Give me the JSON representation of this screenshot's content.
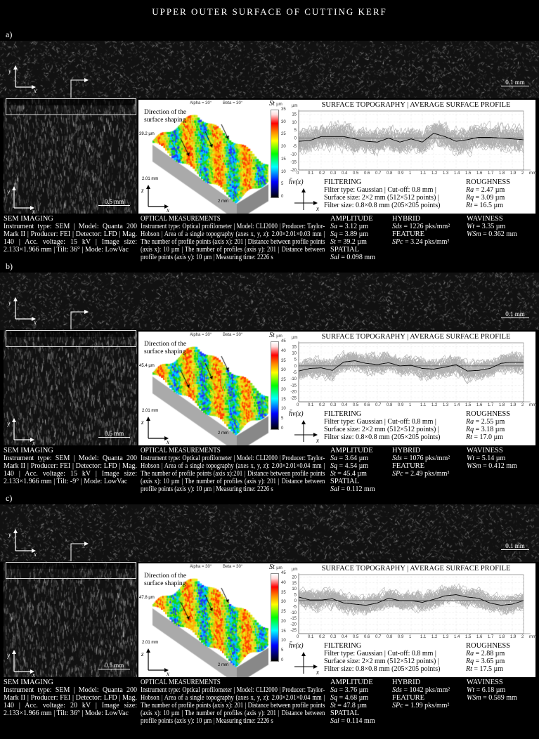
{
  "title": "UPPER OUTER SURFACE OF CUTTING KERF",
  "common": {
    "strip_scale": "0.1 mm",
    "sem_scale": "0.5 mm",
    "alpha": "Alpha = 30°",
    "beta": "Beta = 30°",
    "direction": "Direction of the surface shaping",
    "width_label": "2.01 mm",
    "length_label": "2 mm",
    "colorbar_symbol": "St",
    "colorbar_unit": "µm",
    "chart_title": "SURFACE TOPOGRAPHY | AVERAGE SURFACE PROFILE",
    "chart_yunit": "µm",
    "chart_xunit": "mm",
    "profile_symbol": "h̄v(x)",
    "filtering_header": "FILTERING",
    "filter_type": "Filter type: Gaussian | Cut-off: 0.8 mm |",
    "surface_size": "Surface size: 2×2 mm (512×512 points) |",
    "filter_size": "Filter size: 0.8×0.8 mm (205×205 points)",
    "roughness_header": "ROUGHNESS",
    "sem_header": "SEM IMAGING",
    "optical_header": "OPTICAL MEASUREMENTS",
    "amplitude_header": "AMPLITUDE",
    "spatial_header": "SPATIAL",
    "hybrid_header": "HYBRID",
    "feature_header": "FEATURE",
    "waviness_header": "WAVINESS",
    "axis_x": "x",
    "axis_y": "y",
    "axis_z": "z"
  },
  "panels": [
    {
      "label": "a)",
      "height_label": "39.2 µm",
      "colorbar_ticks": [
        "0",
        "5",
        "10",
        "15",
        "20",
        "25",
        "30",
        "35"
      ],
      "sem_text": "Instrument type: SEM | Model: Quanta 200 Mark II | Producer: FEI | Detector: LFD | Mag. 140 | Acc. voltage: 15 kV | Image size: 2.133×1.966 mm | Tilt: 36° | Mode: LowVac",
      "optical_text": "Instrument type: Optical profilometer | Model: CLI2000 | Producer: Taylor-Hobson | Area of a single topography (axes x, y, z): 2.00×2.01×0.03 mm | The number of profile points (axis x): 201 | Distance between profile points (axis x): 10 µm | The number of profiles (axis y): 201 | Distance between profile points (axis y): 10 µm | Measuring time: 2226 s",
      "roughness": [
        {
          "sym": "Ra",
          "val": " = 2.47 µm"
        },
        {
          "sym": "Rq",
          "val": " = 3.09 µm"
        },
        {
          "sym": "Rt",
          "val": " = 16.5 µm"
        }
      ],
      "amplitude": [
        {
          "sym": "Sa",
          "val": " = 3.12 µm"
        },
        {
          "sym": "Sq",
          "val": " = 3.89 µm"
        },
        {
          "sym": "St",
          "val": " = 39.2 µm"
        }
      ],
      "spatial": {
        "sym": "Sal",
        "val": " = 0.098 mm"
      },
      "hybrid": {
        "sym": "Sds",
        "val": " = 1226 pks/mm²"
      },
      "feature": {
        "sym": "SPc",
        "val": " = 3.24 pks/mm²"
      },
      "waviness": [
        {
          "sym": "Wt",
          "val": " = 3.35 µm"
        },
        {
          "sym": "WSm",
          "val": " = 0.362 mm"
        }
      ]
    },
    {
      "label": "b)",
      "height_label": "45.4 µm",
      "colorbar_ticks": [
        "0",
        "5",
        "10",
        "15",
        "20",
        "25",
        "30",
        "35",
        "40",
        "45"
      ],
      "sem_text": "Instrument type: SEM | Model: Quanta 200 Mark II | Producer: FEI | Detector: LFD | Mag. 140 | Acc. voltage: 15 kV | Image size: 2.133×1.966 mm | Tilt: -9° | Mode: LowVac",
      "optical_text": "Instrument type: Optical profilometer | Model: CLI2000 | Producer: Taylor-Hobson | Area of a single topography (axes x, y, z): 2.00×2.01×0.04 mm | The number of profile points (axis x):201 | Distance between profile points (axis x): 10 µm | The number of profiles (axis y): 201 | Distance between profile points (axis y): 10 µm | Measuring time: 2226 s",
      "roughness": [
        {
          "sym": "Ra",
          "val": " = 2.55 µm"
        },
        {
          "sym": "Rq",
          "val": " = 3.18 µm"
        },
        {
          "sym": "Rt",
          "val": " = 17.0 µm"
        }
      ],
      "amplitude": [
        {
          "sym": "Sa",
          "val": " = 3.64 µm"
        },
        {
          "sym": "Sq",
          "val": " = 4.54 µm"
        },
        {
          "sym": "St",
          "val": " = 45.4 µm"
        }
      ],
      "spatial": {
        "sym": "Sal",
        "val": " = 0.112 mm"
      },
      "hybrid": {
        "sym": "Sds",
        "val": " = 1076 pks/mm²"
      },
      "feature": {
        "sym": "SPc",
        "val": " = 2.49 pks/mm²"
      },
      "waviness": [
        {
          "sym": "Wt",
          "val": " = 5.14 µm"
        },
        {
          "sym": "WSm",
          "val": " = 0.412 mm"
        }
      ]
    },
    {
      "label": "c)",
      "height_label": "47.8 µm",
      "colorbar_ticks": [
        "0",
        "5",
        "10",
        "15",
        "20",
        "25",
        "30",
        "35",
        "40",
        "45"
      ],
      "sem_text": "Instrument type: SEM | Model: Quanta 200 Mark II | Producer: FEI | Detector: LFD | Mag. 140 | Acc. voltage: 20 kV | Image size: 2.133×1.966 mm | Tilt: 36° | Mode: LowVac",
      "optical_text": "Instrument type: Optical profilometer | Model: CLI2000 | Producer: Taylor-Hobson | Area of a single topography (axes x, y, z): 2.00×2.01×0.04 mm | The number of profile points (axis x): 201 | Distance between profile points (axis x): 10 µm | The number of profiles (axis y): 201 | Distance between profile points (axis y): 10 µm | Measuring time: 2226 s",
      "roughness": [
        {
          "sym": "Ra",
          "val": " = 2.88 µm"
        },
        {
          "sym": "Rq",
          "val": " = 3.65 µm"
        },
        {
          "sym": "Rt",
          "val": " = 17.5 µm"
        }
      ],
      "amplitude": [
        {
          "sym": "Sa",
          "val": " = 3.76 µm"
        },
        {
          "sym": "Sq",
          "val": " = 4.68 µm"
        },
        {
          "sym": "St",
          "val": " = 47.8 µm"
        }
      ],
      "spatial": {
        "sym": "Sal",
        "val": " = 0.114 mm"
      },
      "hybrid": {
        "sym": "Sds",
        "val": " = 1042 pks/mm²"
      },
      "feature": {
        "sym": "SPc",
        "val": " = 1.99 pks/mm²"
      },
      "waviness": [
        {
          "sym": "Wt",
          "val": " = 6.18 µm"
        },
        {
          "sym": "WSm",
          "val": " = 0.589 mm"
        }
      ]
    }
  ],
  "chart_data": [
    {
      "type": "line",
      "title": "SURFACE TOPOGRAPHY | AVERAGE SURFACE PROFILE",
      "xlabel": "mm",
      "ylabel": "µm",
      "xlim": [
        0,
        2
      ],
      "ylim": [
        -20,
        17
      ],
      "x_ticks": [
        "0",
        "0.1",
        "0.2",
        "0.3",
        "0.4",
        "0.5",
        "0.6",
        "0.7",
        "0.8",
        "0.9",
        "1",
        "1.1",
        "1.2",
        "1.3",
        "1.4",
        "1.5",
        "1.6",
        "1.7",
        "1.8",
        "1.9",
        "2"
      ],
      "y_ticks": [
        "15",
        "10",
        "5",
        "0",
        "-5",
        "-10",
        "-15",
        "-20"
      ],
      "average_profile": {
        "x": [
          0,
          0.1,
          0.2,
          0.3,
          0.4,
          0.5,
          0.6,
          0.7,
          0.8,
          0.9,
          1,
          1.1,
          1.2,
          1.3,
          1.4,
          1.5,
          1.6,
          1.7,
          1.8,
          1.9,
          2
        ],
        "y": [
          -2,
          -1.5,
          1,
          1,
          1,
          -0.5,
          -2,
          -2.5,
          0,
          -2.5,
          -0.5,
          -2.5,
          3,
          1,
          -2,
          -1,
          0.5,
          0.5,
          0,
          -0.5,
          -1
        ]
      },
      "grid": true
    },
    {
      "type": "line",
      "title": "SURFACE TOPOGRAPHY | AVERAGE SURFACE PROFILE",
      "xlabel": "mm",
      "ylabel": "µm",
      "xlim": [
        0,
        2
      ],
      "ylim": [
        -28,
        18
      ],
      "x_ticks": [
        "0",
        "0.1",
        "0.2",
        "0.3",
        "0.4",
        "0.5",
        "0.6",
        "0.7",
        "0.8",
        "0.9",
        "1",
        "1.1",
        "1.2",
        "1.3",
        "1.4",
        "1.5",
        "1.6",
        "1.7",
        "1.8",
        "1.9",
        "2"
      ],
      "y_ticks": [
        "15",
        "10",
        "5",
        "0",
        "-5",
        "-10",
        "-15",
        "-20",
        "-25"
      ],
      "average_profile": {
        "x": [
          0,
          0.1,
          0.2,
          0.3,
          0.4,
          0.5,
          0.6,
          0.7,
          0.8,
          0.9,
          1,
          1.1,
          1.2,
          1.3,
          1.4,
          1.5,
          1.6,
          1.7,
          1.8,
          1.9,
          2
        ],
        "y": [
          -4,
          -2,
          -1.5,
          -3.5,
          3,
          4,
          2,
          1,
          2.5,
          0,
          0.5,
          -2,
          -2.5,
          -1,
          1,
          -4,
          -3.5,
          -2,
          2,
          3,
          3
        ]
      },
      "grid": true
    },
    {
      "type": "line",
      "title": "SURFACE TOPOGRAPHY | AVERAGE SURFACE PROFILE",
      "xlabel": "mm",
      "ylabel": "µm",
      "xlim": [
        0,
        2
      ],
      "ylim": [
        -28,
        22
      ],
      "x_ticks": [
        "0",
        "0.1",
        "0.2",
        "0.3",
        "0.4",
        "0.5",
        "0.6",
        "0.7",
        "0.8",
        "0.9",
        "1",
        "1.1",
        "1.2",
        "1.3",
        "1.4",
        "1.5",
        "1.6",
        "1.7",
        "1.8",
        "1.9",
        "2"
      ],
      "y_ticks": [
        "20",
        "15",
        "10",
        "5",
        "0",
        "-5",
        "-10",
        "-15",
        "-20",
        "-25"
      ],
      "average_profile": {
        "x": [
          0,
          0.1,
          0.2,
          0.3,
          0.4,
          0.5,
          0.6,
          0.7,
          0.8,
          0.9,
          1,
          1.1,
          1.2,
          1.3,
          1.4,
          1.5,
          1.6,
          1.7,
          1.8,
          1.9,
          2
        ],
        "y": [
          3,
          0.5,
          0.5,
          1.5,
          -2,
          -3,
          -4,
          -2,
          2,
          0,
          0,
          -1.5,
          1,
          4,
          5,
          3,
          2,
          -2,
          -4,
          -3,
          0
        ]
      },
      "grid": true
    }
  ]
}
